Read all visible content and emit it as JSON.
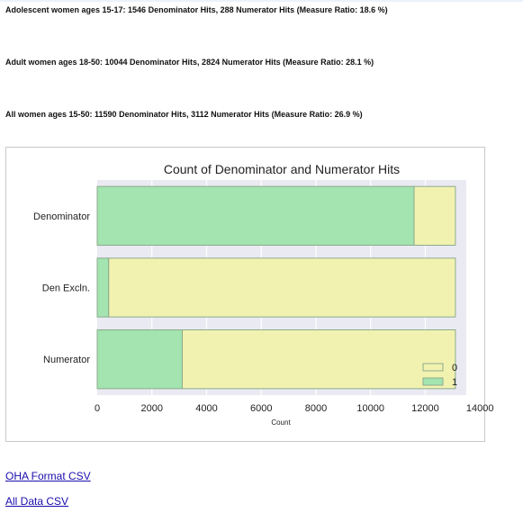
{
  "summaries": [
    "Adolescent women ages 15-17: 1546 Denominator Hits, 288 Numerator Hits (Measure Ratio: 18.6 %)",
    "Adult women ages 18-50: 10044 Denominator Hits, 2824 Numerator Hits (Measure Ratio: 28.1 %)",
    "All women ages 15-50: 11590 Denominator Hits, 3112 Numerator Hits (Measure Ratio: 26.9 %)"
  ],
  "links": {
    "oha_csv": "OHA Format CSV",
    "all_csv": "All Data CSV"
  },
  "colors": {
    "series_0": "#f2f2b0",
    "series_1": "#a3e4b0",
    "plot_background": "#eaeaf2",
    "link": "#1a0dab"
  },
  "chart_data": {
    "type": "bar",
    "orientation": "horizontal",
    "stacked": true,
    "title": "Count of Denominator and Numerator Hits",
    "xlabel": "Count",
    "ylabel": "",
    "categories": [
      "Denominator",
      "Den Excln.",
      "Numerator"
    ],
    "series": [
      {
        "name": "1",
        "values": [
          11590,
          420,
          3112
        ]
      },
      {
        "name": "0",
        "values": [
          1512,
          12682,
          9990
        ]
      }
    ],
    "xlim": [
      0,
      13500
    ],
    "xticks": [
      0,
      2000,
      4000,
      6000,
      8000,
      10000,
      12000,
      14000
    ],
    "xtick_labels": [
      "0",
      "2000",
      "4000",
      "6000",
      "8000",
      "10000",
      "12000",
      "14000"
    ],
    "grid": true,
    "legend": {
      "position": "bottom-right",
      "entries": [
        "0",
        "1"
      ]
    }
  }
}
